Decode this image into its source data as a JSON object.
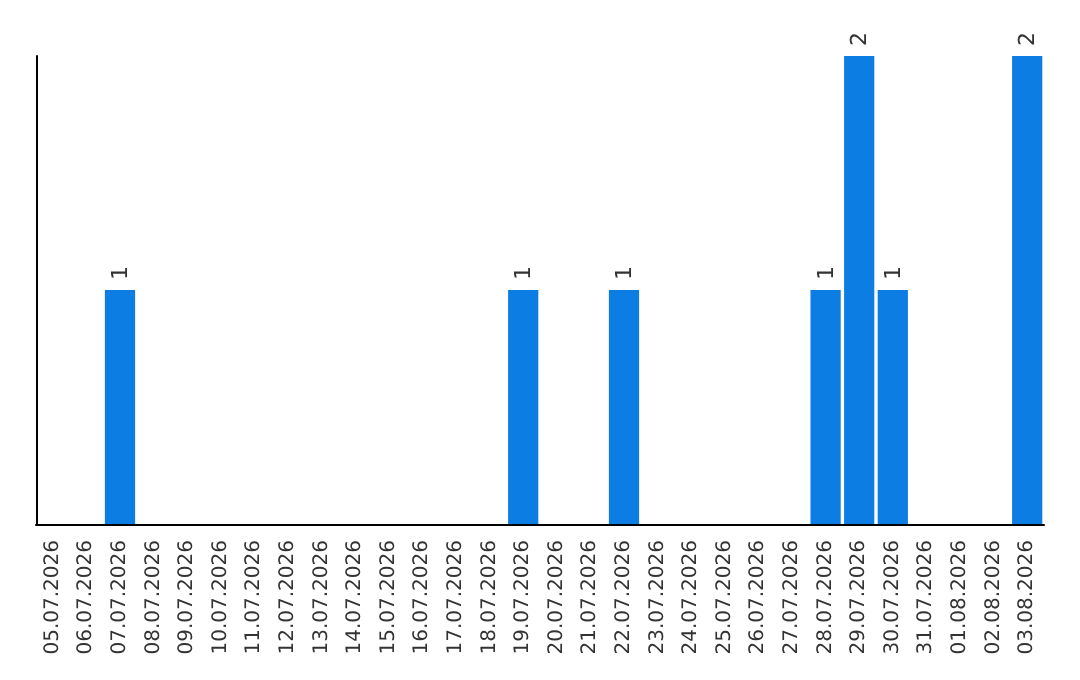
{
  "chart_data": {
    "type": "bar",
    "categories": [
      "05.07.2026",
      "06.07.2026",
      "07.07.2026",
      "08.07.2026",
      "09.07.2026",
      "10.07.2026",
      "11.07.2026",
      "12.07.2026",
      "13.07.2026",
      "14.07.2026",
      "15.07.2026",
      "16.07.2026",
      "17.07.2026",
      "18.07.2026",
      "19.07.2026",
      "20.07.2026",
      "21.07.2026",
      "22.07.2026",
      "23.07.2026",
      "24.07.2026",
      "25.07.2026",
      "26.07.2026",
      "27.07.2026",
      "28.07.2026",
      "29.07.2026",
      "30.07.2026",
      "31.07.2026",
      "01.08.2026",
      "02.08.2026",
      "03.08.2026"
    ],
    "values": [
      0,
      0,
      1,
      0,
      0,
      0,
      0,
      0,
      0,
      0,
      0,
      0,
      0,
      0,
      1,
      0,
      0,
      1,
      0,
      0,
      0,
      0,
      0,
      1,
      2,
      1,
      0,
      0,
      0,
      2
    ],
    "value_labels": [
      null,
      null,
      "1",
      null,
      null,
      null,
      null,
      null,
      null,
      null,
      null,
      null,
      null,
      null,
      "1",
      null,
      null,
      "1",
      null,
      null,
      null,
      null,
      null,
      "1",
      "2",
      "1",
      null,
      null,
      null,
      "2"
    ],
    "color": "#0b7de3",
    "ylim": [
      0,
      2
    ],
    "tick_labels": "x",
    "grid": false
  }
}
